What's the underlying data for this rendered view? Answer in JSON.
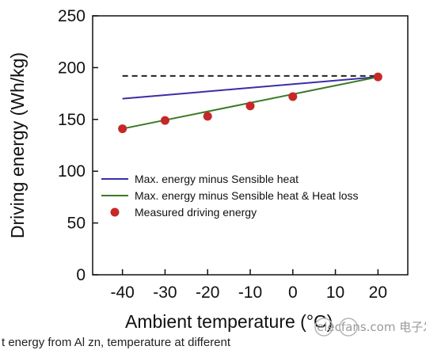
{
  "chart_data": {
    "type": "line",
    "xlabel": "Ambient temperature (°C)",
    "ylabel": "Driving energy (Wh/kg)",
    "xlim": [
      -47,
      27
    ],
    "ylim": [
      0,
      250
    ],
    "xticks": [
      -40,
      -30,
      -20,
      -10,
      0,
      10,
      20
    ],
    "yticks": [
      0,
      50,
      100,
      150,
      200,
      250
    ],
    "grid": false,
    "legend": "lower-right",
    "reference_line": {
      "style": "dashed",
      "color": "#222222",
      "x": [
        -40,
        20
      ],
      "y": [
        192,
        192
      ]
    },
    "series": [
      {
        "name": "Max. energy minus Sensible heat",
        "kind": "line",
        "color": "#3a2ea6",
        "x": [
          -40,
          20
        ],
        "y": [
          170,
          191
        ]
      },
      {
        "name": "Max. energy minus Sensible heat & Heat loss",
        "kind": "line",
        "color": "#3a7a24",
        "x": [
          -40,
          20
        ],
        "y": [
          141,
          191
        ]
      },
      {
        "name": "Measured driving energy",
        "kind": "scatter",
        "color": "#c62828",
        "x": [
          -40,
          -30,
          -20,
          -10,
          0,
          20
        ],
        "y": [
          141,
          149,
          153,
          163,
          172,
          191
        ]
      }
    ]
  },
  "watermark": "elecfans.com 电子发烧友",
  "footer_text": "t energy from Al zn, temperature at different"
}
